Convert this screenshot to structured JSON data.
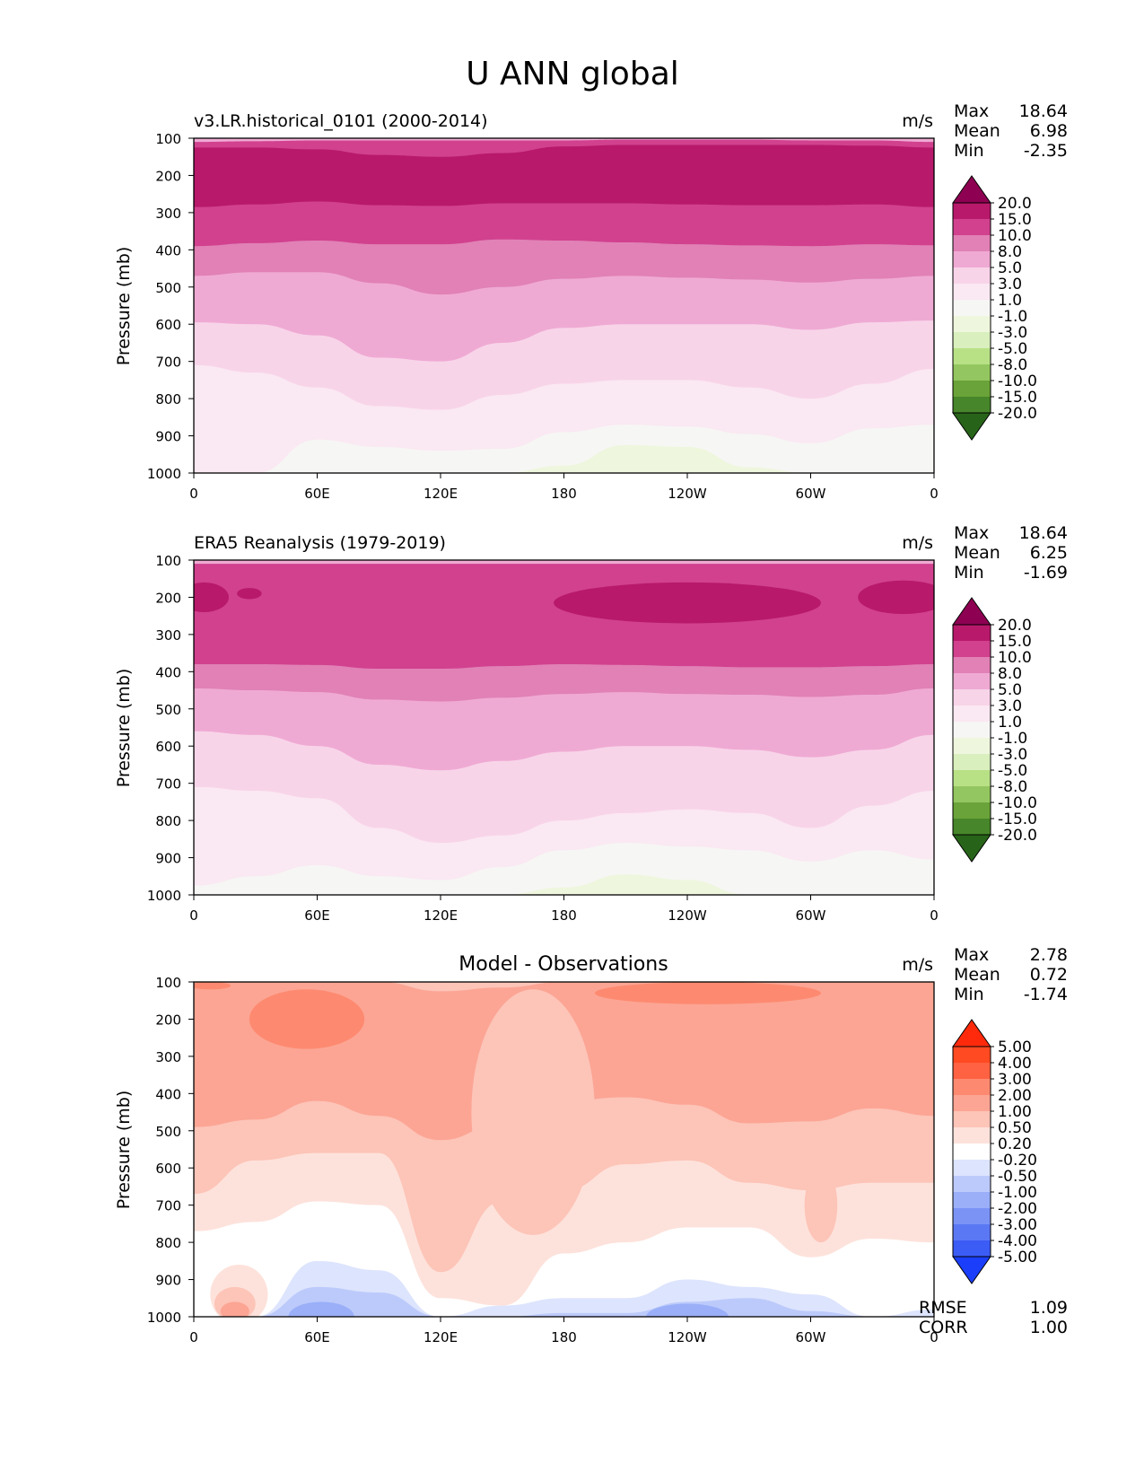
{
  "figure_title": "U ANN global",
  "chart_data": [
    {
      "type": "contour",
      "title": "v3.LR.historical_0101 (2000-2014)",
      "units": "m/s",
      "xlabel": "",
      "ylabel": "Pressure (mb)",
      "x_ticks": [
        "0",
        "60E",
        "120E",
        "180",
        "120W",
        "60W",
        "0"
      ],
      "y_ticks": [
        "100",
        "200",
        "300",
        "400",
        "500",
        "600",
        "700",
        "800",
        "900",
        "1000"
      ],
      "stats": [
        {
          "label": "Max",
          "value": "18.64"
        },
        {
          "label": "Mean",
          "value": "6.98"
        },
        {
          "label": "Min",
          "value": "-2.35"
        }
      ],
      "colorbar": {
        "levels": [
          "20.0",
          "15.0",
          "10.0",
          "8.0",
          "5.0",
          "3.0",
          "1.0",
          "-1.0",
          "-3.0",
          "-5.0",
          "-8.0",
          "-10.0",
          "-15.0",
          "-20.0"
        ],
        "colors": [
          "#8e0152",
          "#b8196b",
          "#d1418e",
          "#e181b6",
          "#efaad3",
          "#f8d4e9",
          "#fae8f2",
          "#f6f6f4",
          "#eef6dd",
          "#d9efbd",
          "#b8e186",
          "#93c660",
          "#6aa339",
          "#47862a",
          "#276419"
        ]
      },
      "bands": [
        {
          "color": "#efaad3",
          "top": [
            100,
            100,
            100,
            100,
            100,
            100,
            100,
            100,
            100,
            100,
            100,
            100,
            100
          ]
        },
        {
          "color": "#d1418e",
          "top": [
            110,
            108,
            106,
            106,
            106,
            106,
            106,
            104,
            104,
            104,
            106,
            106,
            110
          ]
        },
        {
          "color": "#b8196b",
          "top": [
            125,
            125,
            130,
            145,
            150,
            140,
            122,
            118,
            118,
            118,
            118,
            120,
            125
          ]
        },
        {
          "color": "#d1418e",
          "top": [
            285,
            278,
            270,
            280,
            282,
            275,
            275,
            275,
            278,
            280,
            280,
            278,
            285
          ]
        },
        {
          "color": "#e181b6",
          "top": [
            390,
            382,
            375,
            385,
            385,
            372,
            375,
            380,
            385,
            388,
            390,
            385,
            388
          ]
        },
        {
          "color": "#efaad3",
          "top": [
            470,
            460,
            460,
            490,
            520,
            500,
            478,
            470,
            475,
            480,
            488,
            478,
            470
          ]
        },
        {
          "color": "#f8d4e9",
          "top": [
            595,
            600,
            630,
            690,
            700,
            650,
            610,
            600,
            600,
            600,
            615,
            595,
            590
          ]
        },
        {
          "color": "#fae8f2",
          "top": [
            710,
            730,
            770,
            820,
            830,
            790,
            760,
            750,
            750,
            770,
            800,
            760,
            720
          ]
        },
        {
          "color": "#f6f6f4",
          "top": [
            1000,
            1000,
            910,
            930,
            940,
            935,
            890,
            870,
            875,
            895,
            920,
            880,
            870
          ]
        },
        {
          "color": "#eef6dd",
          "top": [
            1000,
            1000,
            1000,
            1000,
            1000,
            1000,
            980,
            925,
            930,
            985,
            1000,
            1000,
            1000
          ]
        }
      ]
    },
    {
      "type": "contour",
      "title": "ERA5 Reanalysis (1979-2019)",
      "units": "m/s",
      "xlabel": "",
      "ylabel": "Pressure (mb)",
      "x_ticks": [
        "0",
        "60E",
        "120E",
        "180",
        "120W",
        "60W",
        "0"
      ],
      "y_ticks": [
        "100",
        "200",
        "300",
        "400",
        "500",
        "600",
        "700",
        "800",
        "900",
        "1000"
      ],
      "stats": [
        {
          "label": "Max",
          "value": "18.64"
        },
        {
          "label": "Mean",
          "value": "6.25"
        },
        {
          "label": "Min",
          "value": "-1.69"
        }
      ],
      "colorbar": {
        "levels": [
          "20.0",
          "15.0",
          "10.0",
          "8.0",
          "5.0",
          "3.0",
          "1.0",
          "-1.0",
          "-3.0",
          "-5.0",
          "-8.0",
          "-10.0",
          "-15.0",
          "-20.0"
        ],
        "colors": [
          "#8e0152",
          "#b8196b",
          "#d1418e",
          "#e181b6",
          "#efaad3",
          "#f8d4e9",
          "#fae8f2",
          "#f6f6f4",
          "#eef6dd",
          "#d9efbd",
          "#b8e186",
          "#93c660",
          "#6aa339",
          "#47862a",
          "#276419"
        ]
      },
      "bands": [
        {
          "color": "#efaad3",
          "top": [
            100,
            100,
            100,
            100,
            100,
            100,
            100,
            100,
            100,
            100,
            100,
            100,
            100
          ]
        },
        {
          "color": "#d1418e",
          "top": [
            110,
            110,
            110,
            110,
            110,
            110,
            110,
            110,
            110,
            110,
            110,
            110,
            110
          ]
        },
        {
          "color": "#d1418e",
          "top": [
            380,
            380,
            382,
            392,
            392,
            385,
            380,
            382,
            385,
            388,
            388,
            385,
            380
          ]
        },
        {
          "color": "#e181b6",
          "top": [
            380,
            380,
            382,
            392,
            392,
            385,
            380,
            382,
            385,
            388,
            388,
            385,
            380
          ]
        },
        {
          "color": "#efaad3",
          "top": [
            445,
            450,
            455,
            475,
            480,
            470,
            460,
            455,
            460,
            462,
            468,
            462,
            445
          ]
        },
        {
          "color": "#f8d4e9",
          "top": [
            560,
            570,
            600,
            650,
            665,
            640,
            615,
            600,
            600,
            610,
            630,
            610,
            570
          ]
        },
        {
          "color": "#fae8f2",
          "top": [
            710,
            720,
            740,
            820,
            860,
            840,
            800,
            780,
            770,
            780,
            820,
            760,
            720
          ]
        },
        {
          "color": "#f6f6f4",
          "top": [
            975,
            950,
            920,
            950,
            960,
            925,
            880,
            860,
            870,
            880,
            910,
            880,
            905
          ]
        },
        {
          "color": "#eef6dd",
          "top": [
            1000,
            1000,
            1000,
            1000,
            1000,
            1000,
            980,
            945,
            960,
            1000,
            1000,
            1000,
            1000
          ]
        }
      ],
      "patches": [
        {
          "color": "#b8196b",
          "lon": 240,
          "p": 215,
          "rx": 65,
          "ry": 55
        },
        {
          "color": "#b8196b",
          "lon": 345,
          "p": 200,
          "rx": 22,
          "ry": 45
        },
        {
          "color": "#b8196b",
          "lon": 5,
          "p": 200,
          "rx": 12,
          "ry": 40
        },
        {
          "color": "#b8196b",
          "lon": 27,
          "p": 190,
          "rx": 6,
          "ry": 15
        }
      ]
    },
    {
      "type": "contour",
      "title": "Model - Observations",
      "units": "m/s",
      "xlabel": "",
      "ylabel": "Pressure (mb)",
      "x_ticks": [
        "0",
        "60E",
        "120E",
        "180",
        "120W",
        "60W",
        "0"
      ],
      "y_ticks": [
        "100",
        "200",
        "300",
        "400",
        "500",
        "600",
        "700",
        "800",
        "900",
        "1000"
      ],
      "stats": [
        {
          "label": "Max",
          "value": "2.78"
        },
        {
          "label": "Mean",
          "value": "0.72"
        },
        {
          "label": "Min",
          "value": "-1.74"
        }
      ],
      "extra_stats": [
        {
          "label": "RMSE",
          "value": "1.09"
        },
        {
          "label": "CORR",
          "value": "1.00"
        }
      ],
      "colorbar": {
        "levels": [
          "5.00",
          "4.00",
          "3.00",
          "2.00",
          "1.00",
          "0.50",
          "0.20",
          "-0.20",
          "-0.50",
          "-1.00",
          "-2.00",
          "-3.00",
          "-4.00",
          "-5.00"
        ],
        "colors": [
          "#ff2a0c",
          "#ff4a22",
          "#ff6242",
          "#fd8a70",
          "#fca594",
          "#fdc4b8",
          "#fde2db",
          "#ffffff",
          "#dde4fd",
          "#bccafb",
          "#9aaff8",
          "#7b93f5",
          "#5b78f4",
          "#3c5cf6",
          "#1a3ef9"
        ]
      },
      "bands": [
        {
          "color": "#fdc4b8",
          "top": [
            100,
            100,
            100,
            100,
            100,
            100,
            100,
            100,
            100,
            100,
            100,
            100,
            100
          ]
        },
        {
          "color": "#fca594",
          "top": [
            100,
            100,
            100,
            100,
            125,
            115,
            100,
            100,
            100,
            100,
            100,
            100,
            100
          ]
        },
        {
          "color": "#fdc4b8",
          "top": [
            490,
            470,
            420,
            460,
            525,
            480,
            420,
            410,
            430,
            480,
            475,
            440,
            460
          ]
        },
        {
          "color": "#fde2db",
          "top": [
            670,
            580,
            560,
            560,
            880,
            690,
            660,
            590,
            580,
            640,
            660,
            640,
            640
          ]
        },
        {
          "color": "#ffffff",
          "top": [
            770,
            745,
            690,
            700,
            950,
            970,
            830,
            800,
            760,
            760,
            840,
            790,
            800
          ]
        },
        {
          "color": "#dde4fd",
          "top": [
            1000,
            1000,
            850,
            875,
            1000,
            970,
            950,
            950,
            900,
            920,
            940,
            1000,
            980
          ]
        },
        {
          "color": "#bccafb",
          "top": [
            1000,
            1000,
            920,
            935,
            1000,
            1000,
            990,
            990,
            960,
            950,
            985,
            1000,
            1000
          ]
        }
      ],
      "patches": [
        {
          "color": "#fd8a70",
          "lon": 55,
          "p": 200,
          "rx": 28,
          "ry": 80
        },
        {
          "color": "#fd8a70",
          "lon": 250,
          "p": 130,
          "rx": 55,
          "ry": 30
        },
        {
          "color": "#fd8a70",
          "lon": 8,
          "p": 110,
          "rx": 10,
          "ry": 10
        },
        {
          "color": "#fdc4b8",
          "lon": 165,
          "p": 450,
          "rx": 30,
          "ry": 330
        },
        {
          "color": "#fdc4b8",
          "lon": 305,
          "p": 700,
          "rx": 8,
          "ry": 100
        },
        {
          "color": "#fde2db",
          "lon": 22,
          "p": 940,
          "rx": 14,
          "ry": 80
        },
        {
          "color": "#fdc4b8",
          "lon": 20,
          "p": 965,
          "rx": 10,
          "ry": 45
        },
        {
          "color": "#fca594",
          "lon": 20,
          "p": 985,
          "rx": 7,
          "ry": 25
        },
        {
          "color": "#9aaff8",
          "lon": 62,
          "p": 1000,
          "rx": 16,
          "ry": 40
        },
        {
          "color": "#9aaff8",
          "lon": 240,
          "p": 1000,
          "rx": 20,
          "ry": 35
        }
      ]
    }
  ]
}
